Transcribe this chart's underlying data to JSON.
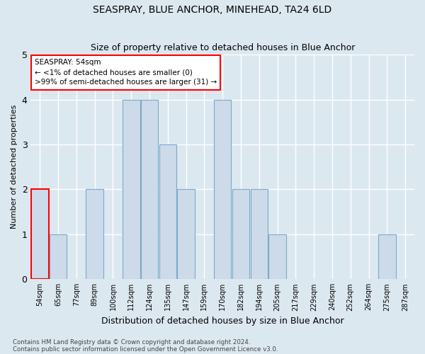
{
  "title1": "SEASPRAY, BLUE ANCHOR, MINEHEAD, TA24 6LD",
  "title2": "Size of property relative to detached houses in Blue Anchor",
  "xlabel": "Distribution of detached houses by size in Blue Anchor",
  "ylabel": "Number of detached properties",
  "categories": [
    "54sqm",
    "65sqm",
    "77sqm",
    "89sqm",
    "100sqm",
    "112sqm",
    "124sqm",
    "135sqm",
    "147sqm",
    "159sqm",
    "170sqm",
    "182sqm",
    "194sqm",
    "205sqm",
    "217sqm",
    "229sqm",
    "240sqm",
    "252sqm",
    "264sqm",
    "275sqm",
    "287sqm"
  ],
  "values": [
    2,
    1,
    0,
    2,
    0,
    4,
    4,
    3,
    2,
    0,
    4,
    2,
    2,
    1,
    0,
    0,
    0,
    0,
    0,
    1,
    0
  ],
  "highlight_index": 0,
  "bar_color": "#cddaea",
  "bar_edge_color": "#7aaac8",
  "highlight_bar_edge_color": "red",
  "annotation_text": "SEASPRAY: 54sqm\n← <1% of detached houses are smaller (0)\n>99% of semi-detached houses are larger (31) →",
  "ylim": [
    0,
    5
  ],
  "yticks": [
    0,
    1,
    2,
    3,
    4,
    5
  ],
  "footer1": "Contains HM Land Registry data © Crown copyright and database right 2024.",
  "footer2": "Contains public sector information licensed under the Open Government Licence v3.0.",
  "background_color": "#dce8f0",
  "grid_color": "white"
}
